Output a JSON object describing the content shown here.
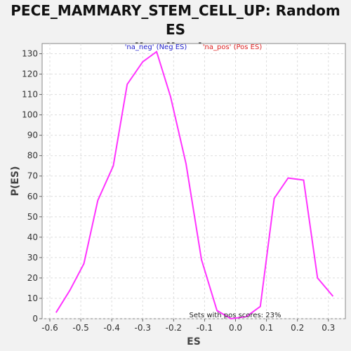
{
  "chart_data": {
    "type": "line",
    "title_line1": "PECE_MAMMARY_STEM_CELL_UP: Random ES",
    "title_line2": "distribution",
    "xlabel": "ES",
    "ylabel": "P(ES)",
    "xlim": [
      -0.625,
      0.355
    ],
    "ylim": [
      0,
      135
    ],
    "xticks": [
      "-0.6",
      "-0.5",
      "-0.4",
      "-0.3",
      "-0.2",
      "-0.1",
      "0.0",
      "0.1",
      "0.2",
      "0.3"
    ],
    "yticks": [
      "0",
      "10",
      "20",
      "30",
      "40",
      "50",
      "60",
      "70",
      "80",
      "90",
      "100",
      "110",
      "120",
      "130"
    ],
    "grid": true,
    "legend": [
      {
        "label": "'na_neg' (Neg ES)",
        "color": "#2222cc"
      },
      {
        "label": "'na_pos' (Pos ES)",
        "color": "#dd2222"
      }
    ],
    "annotation": "Sets with pos scores: 23%",
    "series": [
      {
        "color": "#ff33ff",
        "x": [
          -0.58,
          -0.535,
          -0.49,
          -0.445,
          -0.395,
          -0.35,
          -0.3,
          -0.255,
          -0.21,
          -0.16,
          -0.11,
          -0.06,
          -0.015,
          0.035,
          0.08,
          0.125,
          0.17,
          0.22,
          0.265,
          0.315
        ],
        "y": [
          3,
          14,
          27,
          58,
          75,
          115,
          126,
          131,
          109,
          76,
          29,
          4,
          0,
          1,
          6,
          59,
          69,
          68,
          20,
          11
        ]
      }
    ]
  }
}
